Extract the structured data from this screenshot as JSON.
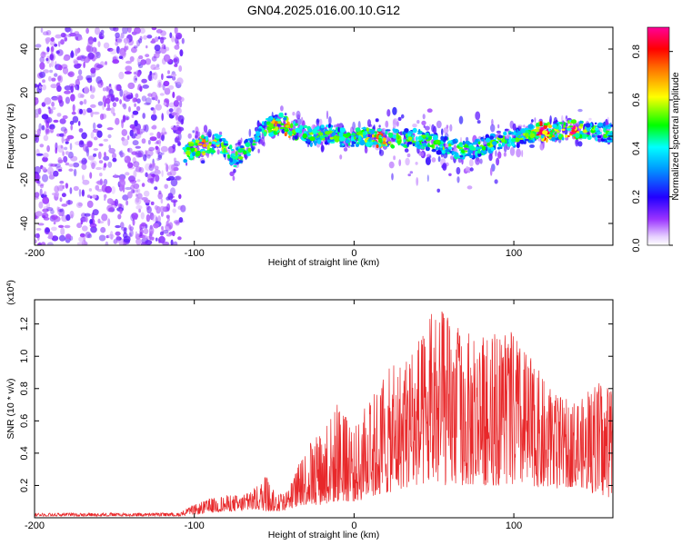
{
  "title": "GN04.2025.016.00.10.G12",
  "colors": {
    "signal": "#e8282a",
    "axis": "#000000",
    "noise": "#7a1fff"
  },
  "chart_data": [
    {
      "type": "heatmap",
      "xlabel": "Height of straight line (km)",
      "ylabel": "Frequency (Hz)",
      "xlim": [
        -200,
        162
      ],
      "ylim": [
        -50,
        50
      ],
      "xticks": [
        -200,
        -100,
        0,
        100
      ],
      "yticks": [
        -40,
        -20,
        0,
        20,
        40
      ],
      "colorbar": {
        "label": "Normalized spectral amplitude",
        "range": [
          0,
          0.9
        ],
        "ticks": [
          "0.0",
          "0.2",
          "0.4",
          "0.6",
          "0.8"
        ],
        "colormap": "rainbow (white → violet → blue → cyan → green → yellow → red → magenta)"
      },
      "noise_region_x": [
        -200,
        -107
      ],
      "ridge_frequency": [
        [
          -106,
          -8
        ],
        [
          -95,
          -4
        ],
        [
          -85,
          -3
        ],
        [
          -75,
          -10
        ],
        [
          -65,
          -5
        ],
        [
          -55,
          4
        ],
        [
          -45,
          6
        ],
        [
          -35,
          1
        ],
        [
          -25,
          0
        ],
        [
          -15,
          1
        ],
        [
          -5,
          -1
        ],
        [
          5,
          0
        ],
        [
          15,
          -1
        ],
        [
          25,
          -1
        ],
        [
          35,
          -1
        ],
        [
          45,
          -2
        ],
        [
          55,
          -4
        ],
        [
          65,
          -6
        ],
        [
          75,
          -6
        ],
        [
          85,
          -3
        ],
        [
          95,
          -2
        ],
        [
          105,
          0
        ],
        [
          115,
          2
        ],
        [
          125,
          2
        ],
        [
          135,
          3
        ],
        [
          145,
          3
        ],
        [
          155,
          2
        ],
        [
          162,
          1
        ]
      ],
      "peak_amplitude_x": [
        -95,
        -45,
        15,
        120,
        135
      ]
    },
    {
      "type": "line",
      "xlabel": "Height of straight line (km)",
      "ylabel": "SNR (10 * v/v)",
      "y_multiplier": "(x10^4)",
      "xlim": [
        -200,
        162
      ],
      "ylim": [
        0,
        1.35
      ],
      "xticks": [
        -200,
        -100,
        0,
        100
      ],
      "yticks": [
        "0.2",
        "0.4",
        "0.6",
        "0.8",
        "1.0",
        "1.2"
      ],
      "series": [
        {
          "envelope": {
            "x": [
              -200,
              -110,
              -100,
              -90,
              -80,
              -70,
              -60,
              -55,
              -50,
              -45,
              -40,
              -30,
              -20,
              -10,
              0,
              10,
              20,
              30,
              40,
              45,
              50,
              60,
              70,
              80,
              90,
              100,
              110,
              120,
              130,
              140,
              150,
              162
            ],
            "low": [
              0.01,
              0.01,
              0.02,
              0.03,
              0.04,
              0.04,
              0.05,
              0.04,
              0.04,
              0.04,
              0.06,
              0.08,
              0.08,
              0.1,
              0.1,
              0.12,
              0.15,
              0.18,
              0.2,
              0.2,
              0.2,
              0.2,
              0.2,
              0.2,
              0.2,
              0.2,
              0.2,
              0.18,
              0.18,
              0.2,
              0.15,
              0.12
            ],
            "high": [
              0.03,
              0.03,
              0.08,
              0.12,
              0.14,
              0.14,
              0.2,
              0.28,
              0.16,
              0.16,
              0.2,
              0.45,
              0.55,
              0.72,
              0.55,
              0.75,
              0.9,
              1.02,
              1.1,
              1.15,
              1.35,
              1.25,
              1.15,
              1.15,
              1.15,
              1.15,
              1.0,
              0.85,
              0.75,
              0.7,
              0.85,
              0.8
            ]
          }
        }
      ]
    }
  ]
}
